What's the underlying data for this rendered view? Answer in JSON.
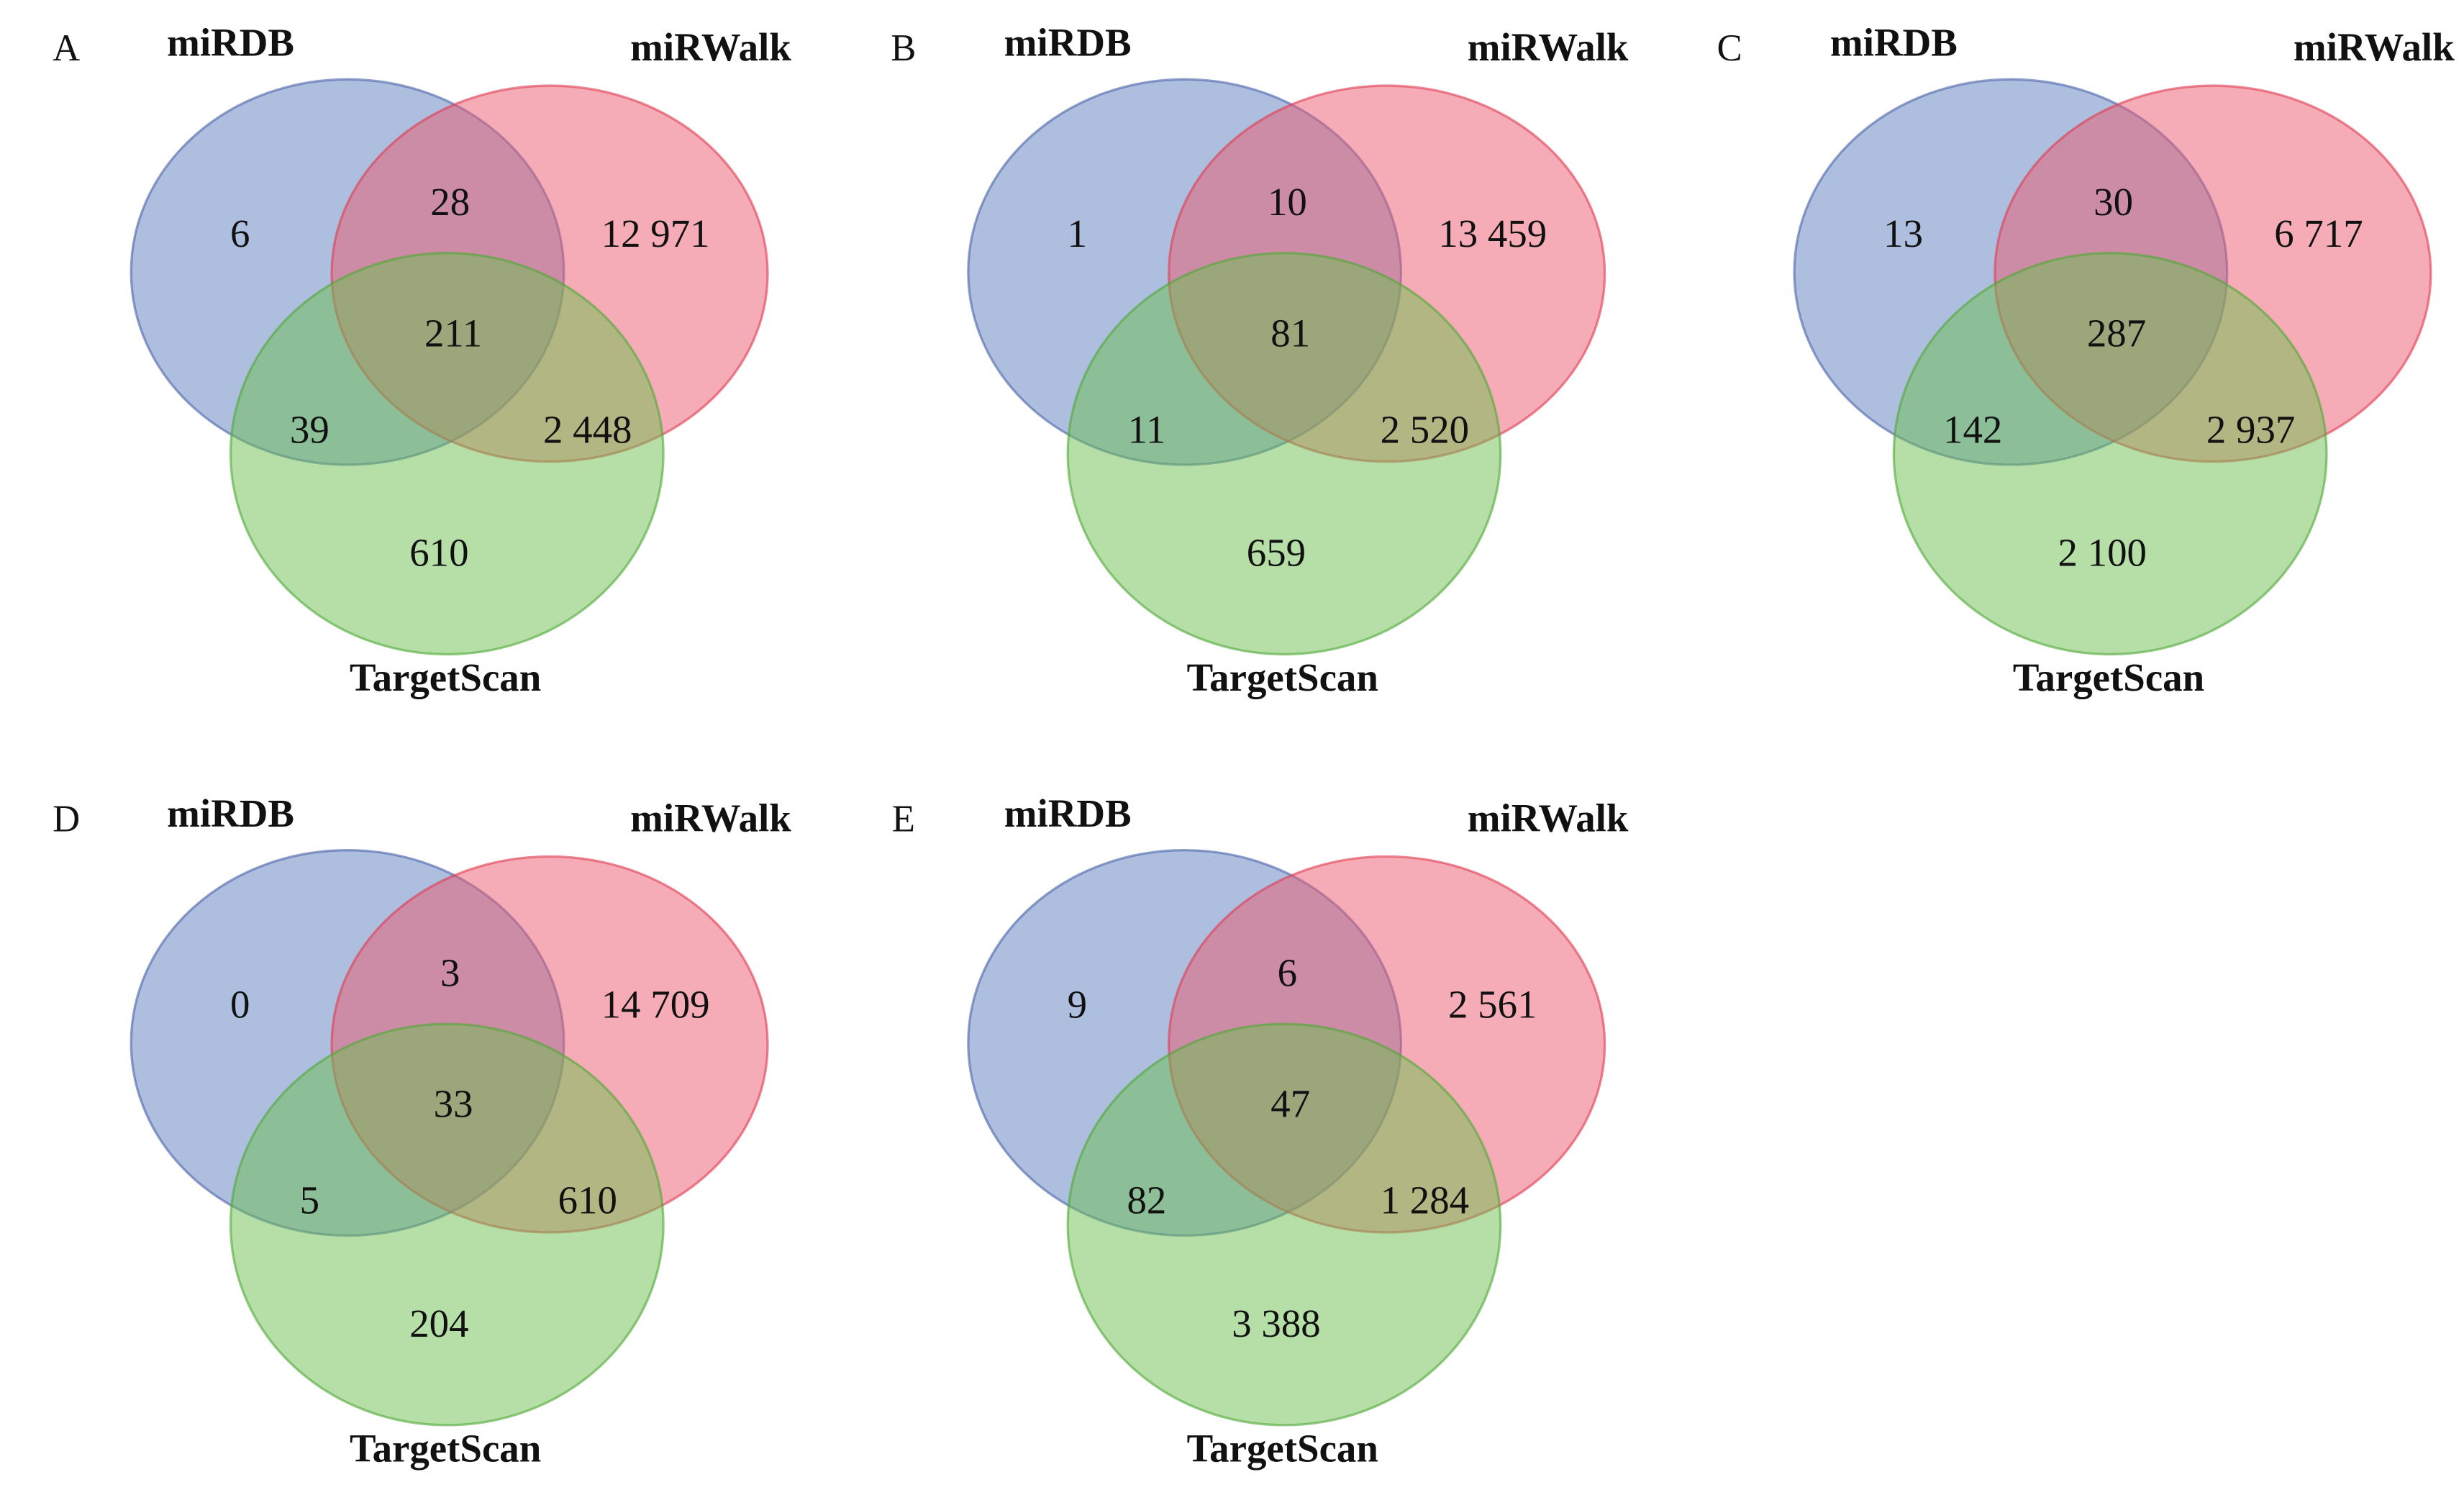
{
  "chart_data": [
    {
      "type": "venn",
      "panel": "A",
      "sets": [
        "miRDB",
        "miRWalk",
        "TargetScan"
      ],
      "regions": {
        "miRDB_only": "6",
        "miRWalk_only": "12 971",
        "TargetScan_only": "610",
        "miRDB_miRWalk": "28",
        "miRDB_TargetScan": "39",
        "miRWalk_TargetScan": "2 448",
        "all": "211"
      }
    },
    {
      "type": "venn",
      "panel": "B",
      "sets": [
        "miRDB",
        "miRWalk",
        "TargetScan"
      ],
      "regions": {
        "miRDB_only": "1",
        "miRWalk_only": "13 459",
        "TargetScan_only": "659",
        "miRDB_miRWalk": "10",
        "miRDB_TargetScan": "11",
        "miRWalk_TargetScan": "2 520",
        "all": "81"
      }
    },
    {
      "type": "venn",
      "panel": "C",
      "sets": [
        "miRDB",
        "miRWalk",
        "TargetScan"
      ],
      "regions": {
        "miRDB_only": "13",
        "miRWalk_only": "6 717",
        "TargetScan_only": "2 100",
        "miRDB_miRWalk": "30",
        "miRDB_TargetScan": "142",
        "miRWalk_TargetScan": "2 937",
        "all": "287"
      }
    },
    {
      "type": "venn",
      "panel": "D",
      "sets": [
        "miRDB",
        "miRWalk",
        "TargetScan"
      ],
      "regions": {
        "miRDB_only": "0",
        "miRWalk_only": "14 709",
        "TargetScan_only": "204",
        "miRDB_miRWalk": "3",
        "miRDB_TargetScan": "5",
        "miRWalk_TargetScan": "610",
        "all": "33"
      }
    },
    {
      "type": "venn",
      "panel": "E",
      "sets": [
        "miRDB",
        "miRWalk",
        "TargetScan"
      ],
      "regions": {
        "miRDB_only": "9",
        "miRWalk_only": "2 561",
        "TargetScan_only": "3 388",
        "miRDB_miRWalk": "6",
        "miRDB_TargetScan": "82",
        "miRWalk_TargetScan": "1 284",
        "all": "47"
      }
    }
  ],
  "colors": {
    "miRDB": "#5b7ec0",
    "miRWalk": "#ee5a6e",
    "TargetScan": "#6cbf4f"
  }
}
